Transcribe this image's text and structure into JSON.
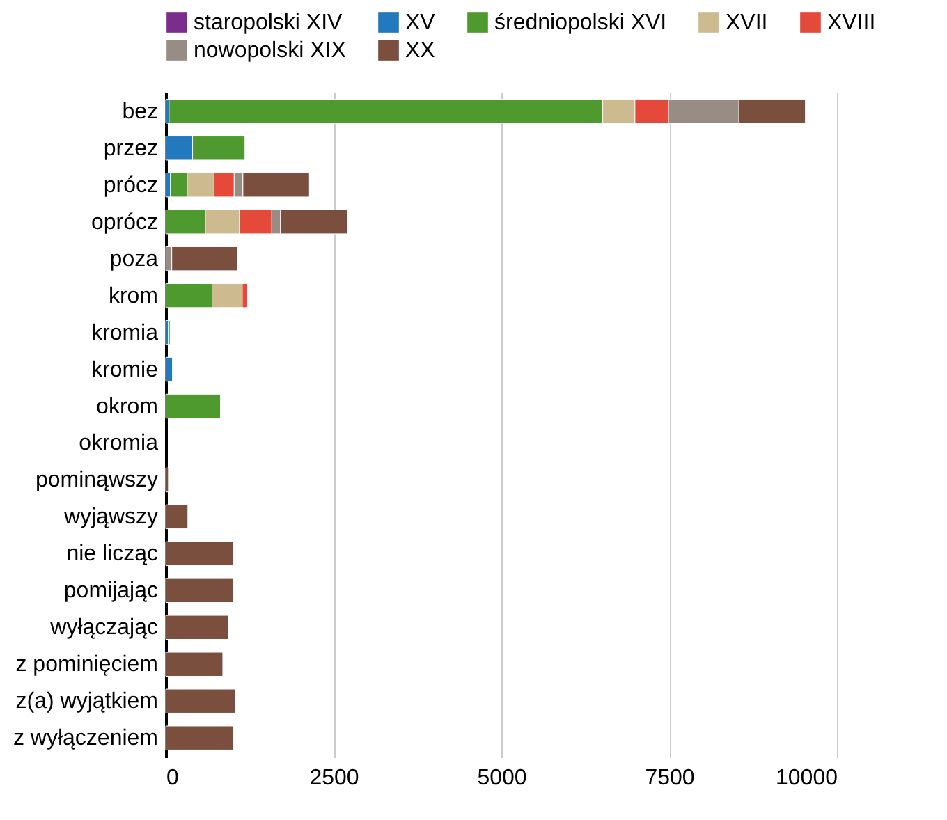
{
  "chart_data": {
    "type": "bar",
    "orientation": "horizontal",
    "stacked": true,
    "categories": [
      "bez",
      "przez",
      "prócz",
      "oprócz",
      "poza",
      "krom",
      "kromia",
      "kromie",
      "okrom",
      "okromia",
      "pominąwszy",
      "wyjąwszy",
      "nie licząc",
      "pomijając",
      "wyłączając",
      "z pominięciem",
      "z(a) wyjątkiem",
      "z wyłączeniem"
    ],
    "series": [
      {
        "name": "staropolski XIV",
        "color": "#7b2d8e",
        "values": [
          null,
          null,
          null,
          null,
          null,
          null,
          null,
          null,
          null,
          null,
          null,
          null,
          null,
          null,
          null,
          null,
          null,
          null
        ]
      },
      {
        "name": "XV",
        "color": "#2379bd",
        "values": [
          50,
          400,
          70,
          null,
          null,
          null,
          40,
          100,
          null,
          null,
          null,
          null,
          null,
          null,
          null,
          null,
          null,
          null
        ]
      },
      {
        "name": "średniopolski XVI",
        "color": "#4e9a2e",
        "values": [
          6460,
          780,
          250,
          590,
          null,
          690,
          25,
          null,
          815,
          null,
          null,
          null,
          null,
          null,
          null,
          null,
          null,
          null
        ]
      },
      {
        "name": "XVII",
        "color": "#cdbb8f",
        "values": [
          480,
          null,
          400,
          510,
          null,
          450,
          null,
          null,
          null,
          null,
          null,
          null,
          null,
          null,
          null,
          null,
          null,
          null
        ]
      },
      {
        "name": "XVIII",
        "color": "#e5493a",
        "values": [
          500,
          null,
          300,
          480,
          null,
          80,
          null,
          null,
          null,
          null,
          null,
          null,
          null,
          null,
          null,
          null,
          null,
          null
        ]
      },
      {
        "name": "nowopolski XIX",
        "color": "#978d85",
        "values": [
          1050,
          null,
          130,
          130,
          90,
          null,
          null,
          null,
          null,
          null,
          null,
          null,
          null,
          null,
          null,
          null,
          null,
          null
        ]
      },
      {
        "name": "XX",
        "color": "#7b4f3e",
        "values": [
          990,
          null,
          990,
          1000,
          980,
          null,
          null,
          null,
          null,
          null,
          40,
          330,
          1010,
          1010,
          930,
          850,
          1040,
          1010
        ]
      }
    ],
    "xlim": [
      0,
      10000
    ],
    "xticks": [
      0,
      2500,
      5000,
      7500,
      10000
    ],
    "grid": "x",
    "legend": "top"
  }
}
